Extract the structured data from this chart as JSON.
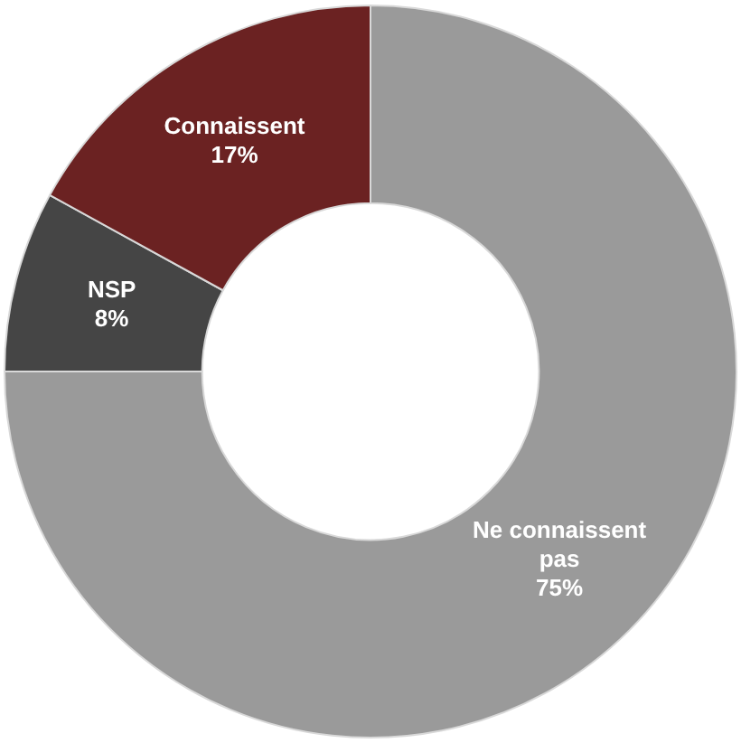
{
  "chart_data": {
    "type": "donut",
    "categories": [
      "Ne connaissent pas",
      "NSP",
      "Connaissent"
    ],
    "values": [
      75,
      8,
      17
    ],
    "colors": [
      "#9a9a9a",
      "#454545",
      "#6b2222"
    ],
    "value_labels": [
      "75%",
      "8%",
      "17%"
    ],
    "legend": false
  }
}
